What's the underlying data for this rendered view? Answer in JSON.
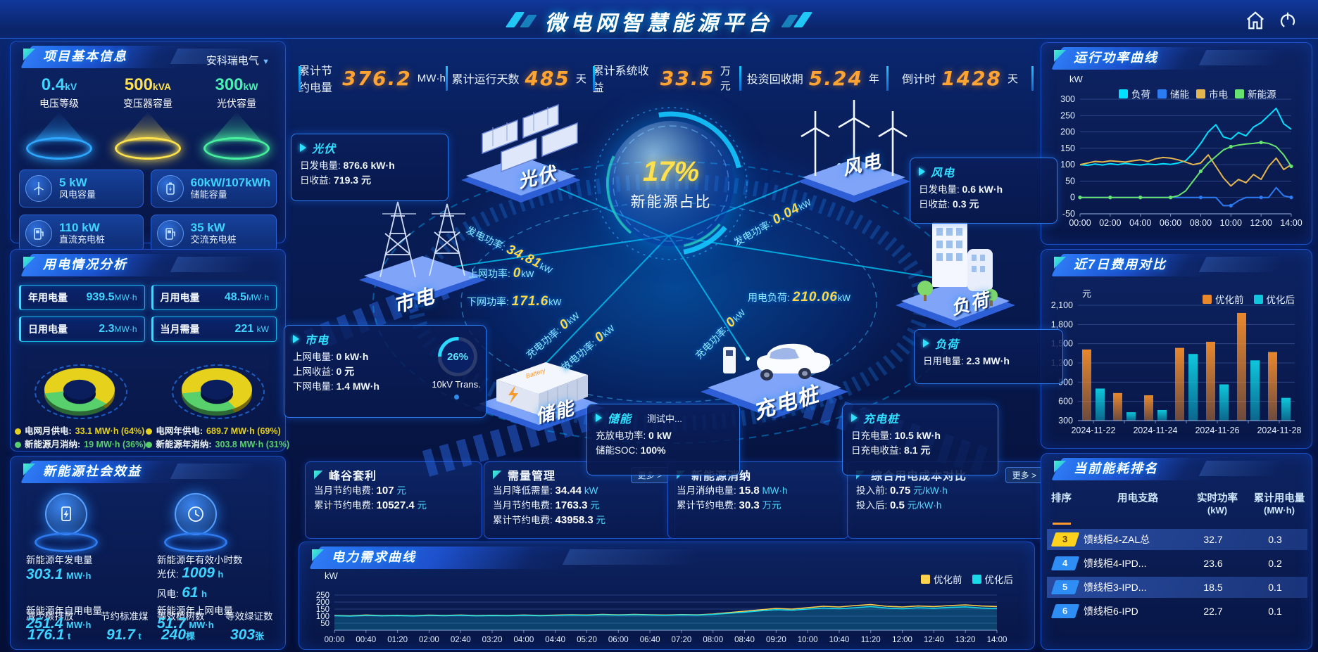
{
  "colors": {
    "accent": "#00d8ff",
    "number_orange": "#ffa332",
    "value_cyan": "#3fd4ff",
    "yellow": "#e6d11d",
    "green": "#58d06c",
    "bar_before": "#e8872c",
    "bar_after": "#0fc6dc"
  },
  "header": {
    "title": "微电网智慧能源平台"
  },
  "top_stats": [
    {
      "label": "累计节约电量",
      "value": "376.2",
      "unit": "MW·h"
    },
    {
      "label": "累计运行天数",
      "value": "485",
      "unit": "天"
    },
    {
      "label": "累计系统收益",
      "value": "33.5",
      "unit": "万元"
    },
    {
      "label": "投资回收期",
      "value": "5.24",
      "unit": "年"
    },
    {
      "label": "倒计时",
      "value": "1428",
      "unit": "天"
    }
  ],
  "project_info": {
    "title": "项目基本信息",
    "company": "安科瑞电气",
    "caret": "▼",
    "cones": [
      {
        "value": "0.4",
        "unit": "kV",
        "label": "电压等级"
      },
      {
        "value": "500",
        "unit": "kVA",
        "label": "变压器容量"
      },
      {
        "value": "300",
        "unit": "kW",
        "label": "光伏容量"
      }
    ],
    "cards": [
      {
        "value": "5 kW",
        "label": "风电容量",
        "icon": "wind-turbine-icon"
      },
      {
        "value": "60kW/107kWh",
        "label": "储能容量",
        "icon": "battery-icon"
      },
      {
        "value": "110 kW",
        "label": "直流充电桩",
        "icon": "dc-charger-icon"
      },
      {
        "value": "35 kW",
        "label": "交流充电桩",
        "icon": "ac-charger-icon"
      }
    ]
  },
  "power_analysis": {
    "title": "用电情况分析",
    "stats": [
      {
        "label": "年用电量",
        "value": "939.5",
        "unit": "MW·h"
      },
      {
        "label": "月用电量",
        "value": "48.5",
        "unit": "MW·h"
      },
      {
        "label": "日用电量",
        "value": "2.3",
        "unit": "MW·h"
      },
      {
        "label": "当月需量",
        "value": "221",
        "unit": "kW"
      }
    ]
  },
  "social_benefit": {
    "title": "新能源社会效益",
    "gen_label": "新能源年发电量",
    "gen_value": "303.1",
    "gen_unit": "MW·h",
    "hours_label": "新能源年有效小时数",
    "pv_label": "光伏:",
    "pv_value": "1009",
    "pv_unit": "h",
    "wind_label": "风电:",
    "wind_value": "61",
    "wind_unit": "h",
    "self_label": "新能源年自用电量",
    "self_value": "251.4",
    "self_unit": "MW·h",
    "co2_label": "减少碳排放",
    "co2_value": "176.1",
    "co2_unit": "t",
    "coal_label": "节约标准煤",
    "coal_value": "91.7",
    "coal_unit": "t",
    "ongrid_label": "新能源年上网电量",
    "ongrid_value": "51.7",
    "ongrid_unit": "MW·h",
    "trees_label": "等效植树数",
    "trees_value": "240",
    "trees_unit": "棵",
    "cert_label": "等效绿证数",
    "cert_value": "303",
    "cert_unit": "张"
  },
  "center": {
    "hub": {
      "percent": "17%",
      "label": "新能源占比"
    },
    "nodes": {
      "pv": "光伏",
      "wind": "风电",
      "grid": "市电",
      "storage": "储能",
      "charger": "充电桩",
      "load": "负荷"
    },
    "flows": {
      "pv_gen": {
        "label": "发电功率:",
        "value": "34.81",
        "unit": "kW"
      },
      "wind_gen": {
        "label": "发电功率:",
        "value": "0.04",
        "unit": "kW"
      },
      "to_grid": {
        "label": "上网功率:",
        "value": "0",
        "unit": "kW"
      },
      "from_grid": {
        "label": "下网功率:",
        "value": "171.6",
        "unit": "kW"
      },
      "storage_charge": {
        "label": "充电功率:",
        "value": "0",
        "unit": "kW"
      },
      "storage_discharge": {
        "label": "放电功率:",
        "value": "0",
        "unit": "kW"
      },
      "load_power": {
        "label": "用电负荷:",
        "value": "210.06",
        "unit": "kW"
      },
      "charger_power": {
        "label": "充电功率:",
        "value": "0",
        "unit": "kW"
      }
    },
    "pv_card": {
      "title": "光伏",
      "rows": [
        {
          "label": "日发电量:",
          "value": "876.6 kW·h"
        },
        {
          "label": "日收益:",
          "value": "719.3 元"
        }
      ]
    },
    "wind_card": {
      "title": "风电",
      "rows": [
        {
          "label": "日发电量:",
          "value": "0.6 kW·h"
        },
        {
          "label": "日收益:",
          "value": "0.3 元"
        }
      ]
    },
    "grid_card": {
      "title": "市电",
      "rows": [
        {
          "label": "上网电量:",
          "value": "0 kW·h"
        },
        {
          "label": "上网收益:",
          "value": "0 元"
        },
        {
          "label": "下网电量:",
          "value": "1.4 MW·h"
        }
      ],
      "gauge_percent": "26%",
      "gauge_label": "10kV Trans."
    },
    "storage_card": {
      "title": "储能",
      "status": "测试中...",
      "rows": [
        {
          "label": "充放电功率:",
          "value": "0 kW"
        },
        {
          "label": "储能SOC:",
          "value": "100%"
        }
      ]
    },
    "charger_card": {
      "title": "充电桩",
      "rows": [
        {
          "label": "日充电量:",
          "value": "10.5 kW·h"
        },
        {
          "label": "日充电收益:",
          "value": "8.1 元"
        }
      ]
    },
    "load_card": {
      "title": "负荷",
      "rows": [
        {
          "label": "日用电量:",
          "value": "2.3 MW·h"
        }
      ]
    }
  },
  "bottom_cards": [
    {
      "title": "峰谷套利",
      "more": "",
      "rows": [
        {
          "label": "当月节约电费:",
          "value": "107",
          "unit": "元"
        },
        {
          "label": "累计节约电费:",
          "value": "10527.4",
          "unit": "元"
        }
      ]
    },
    {
      "title": "需量管理",
      "more": "更多 >",
      "rows": [
        {
          "label": "当月降低需量:",
          "value": "34.44",
          "unit": "kW"
        },
        {
          "label": "当月节约电费:",
          "value": "1763.3",
          "unit": "元"
        },
        {
          "label": "累计节约电费:",
          "value": "43958.3",
          "unit": "元"
        }
      ]
    },
    {
      "title": "新能源消纳",
      "more": "",
      "rows": [
        {
          "label": "当月消纳电量:",
          "value": "15.8",
          "unit": "MW·h"
        },
        {
          "label": "累计节约电费:",
          "value": "30.3",
          "unit": "万元"
        }
      ]
    },
    {
      "title": "综合用电成本对比",
      "more": "更多 >",
      "rows": [
        {
          "label": "投入前:",
          "value": "0.75",
          "unit": "元/kW·h"
        },
        {
          "label": "投入后:",
          "value": "0.5",
          "unit": "元/kW·h"
        }
      ]
    }
  ],
  "demand_panel": {
    "title": "电力需求曲线",
    "ylabel": "kW"
  },
  "right": {
    "power_curve_title": "运行功率曲线",
    "power_curve_ylabel": "kW",
    "cost_title": "近7日费用对比",
    "cost_ylabel": "元",
    "ranking": {
      "title": "当前能耗排名",
      "columns": [
        {
          "t": "排序",
          "s": ""
        },
        {
          "t": "用电支路",
          "s": ""
        },
        {
          "t": "实时功率",
          "s": "(kW)"
        },
        {
          "t": "累计用电量",
          "s": "(MW·h)"
        }
      ],
      "rows": [
        {
          "rank": "3",
          "badge": "yellow",
          "branch": "馈线柜4-ZAL总",
          "power": "32.7",
          "energy": "0.3"
        },
        {
          "rank": "4",
          "badge": "blue",
          "branch": "馈线柜4-IPD...",
          "power": "23.6",
          "energy": "0.2"
        },
        {
          "rank": "5",
          "badge": "blue",
          "branch": "馈线柜3-IPD...",
          "power": "18.5",
          "energy": "0.1"
        },
        {
          "rank": "6",
          "badge": "blue",
          "branch": "馈线柜6-IPD",
          "power": "22.7",
          "energy": "0.1"
        }
      ]
    }
  },
  "chart_data": [
    {
      "id": "power-curve",
      "type": "line",
      "title": "运行功率曲线",
      "ylabel": "kW",
      "ylim": [
        -50,
        300
      ],
      "yticks": [
        -50,
        0,
        50,
        100,
        150,
        200,
        250,
        300
      ],
      "x_labels": [
        "00:00",
        "02:00",
        "04:00",
        "06:00",
        "08:00",
        "10:00",
        "12:00",
        "14:00"
      ],
      "legend_position": "top",
      "grid": true,
      "series": [
        {
          "name": "负荷",
          "color": "#00e0ff",
          "values": [
            100,
            98,
            102,
            99,
            103,
            100,
            104,
            101,
            99,
            102,
            100,
            103,
            101,
            105,
            112,
            135,
            165,
            200,
            222,
            185,
            178,
            198,
            188,
            215,
            228,
            250,
            272,
            225,
            208
          ]
        },
        {
          "name": "储能",
          "color": "#2b7bf3",
          "values": [
            0,
            0,
            0,
            0,
            0,
            0,
            0,
            0,
            0,
            0,
            0,
            0,
            0,
            0,
            0,
            0,
            0,
            0,
            0,
            -25,
            -25,
            -10,
            0,
            0,
            0,
            0,
            30,
            5,
            0
          ]
        },
        {
          "name": "市电",
          "color": "#e3b64e",
          "values": [
            100,
            105,
            110,
            108,
            112,
            110,
            108,
            112,
            115,
            110,
            118,
            122,
            120,
            115,
            108,
            100,
            105,
            130,
            95,
            60,
            35,
            55,
            45,
            70,
            55,
            95,
            120,
            85,
            100
          ]
        },
        {
          "name": "新能源",
          "color": "#67e46f",
          "values": [
            0,
            0,
            0,
            0,
            0,
            0,
            0,
            0,
            0,
            0,
            0,
            0,
            0,
            5,
            20,
            50,
            80,
            105,
            125,
            145,
            155,
            160,
            163,
            165,
            168,
            165,
            155,
            130,
            95
          ]
        }
      ]
    },
    {
      "id": "cost-compare",
      "type": "bar",
      "title": "近7日费用对比",
      "ylabel": "元",
      "ylim": [
        300,
        2100
      ],
      "yticks": [
        300,
        600,
        900,
        1200,
        1500,
        1800,
        2100
      ],
      "categories": [
        "2024-11-22",
        "2024-11-23",
        "2024-11-24",
        "2024-11-25",
        "2024-11-26",
        "2024-11-27",
        "2024-11-28"
      ],
      "x_labels_shown": [
        "2024-11-22",
        "2024-11-24",
        "2024-11-26",
        "2024-11-28"
      ],
      "legend_position": "top-right",
      "grid": true,
      "series": [
        {
          "name": "优化前",
          "color": "#e8872c",
          "values": [
            1410,
            730,
            695,
            1435,
            1530,
            1980,
            1370
          ]
        },
        {
          "name": "优化后",
          "color": "#0fc6dc",
          "values": [
            800,
            430,
            465,
            1340,
            865,
            1240,
            655
          ]
        }
      ]
    },
    {
      "id": "demand-curve",
      "type": "line",
      "title": "电力需求曲线",
      "ylabel": "kW",
      "ylim": [
        0,
        280
      ],
      "yticks": [
        50,
        100,
        150,
        200,
        250
      ],
      "x_labels": [
        "00:00",
        "00:40",
        "01:20",
        "02:00",
        "02:40",
        "03:20",
        "04:00",
        "04:40",
        "05:20",
        "06:00",
        "06:40",
        "07:20",
        "08:00",
        "08:40",
        "09:20",
        "10:00",
        "10:40",
        "11:20",
        "12:00",
        "12:40",
        "13:20",
        "14:00"
      ],
      "legend_position": "top-right",
      "grid": true,
      "series": [
        {
          "name": "优化前",
          "color": "#ffd34e",
          "values": [
            105,
            102,
            108,
            104,
            106,
            103,
            107,
            105,
            108,
            104,
            106,
            105,
            108,
            105,
            107,
            110,
            108,
            112,
            109,
            112,
            110,
            108,
            111,
            109,
            115,
            125,
            135,
            145,
            155,
            150,
            160,
            170,
            165,
            175,
            182,
            170,
            165,
            172,
            168,
            175,
            180,
            172,
            168
          ]
        },
        {
          "name": "优化后",
          "color": "#19d8e8",
          "area": true,
          "values": [
            103,
            100,
            105,
            102,
            104,
            101,
            105,
            103,
            106,
            102,
            104,
            103,
            106,
            103,
            105,
            108,
            106,
            110,
            107,
            110,
            108,
            106,
            109,
            107,
            112,
            120,
            128,
            138,
            146,
            142,
            150,
            158,
            153,
            160,
            168,
            158,
            152,
            160,
            156,
            162,
            166,
            158,
            154
          ]
        }
      ]
    },
    {
      "id": "supply-donut-month",
      "type": "pie",
      "slices": [
        {
          "label": "电网月供电:",
          "display": "33.1 MW·h (64%)",
          "value": 33.1,
          "percent": 64,
          "color": "#e6d11d"
        },
        {
          "label": "新能源月消纳:",
          "display": "19 MW·h (36%)",
          "value": 19,
          "percent": 36,
          "color": "#58d06c"
        }
      ]
    },
    {
      "id": "supply-donut-year",
      "type": "pie",
      "slices": [
        {
          "label": "电网年供电:",
          "display": "689.7 MW·h (69%)",
          "value": 689.7,
          "percent": 69,
          "color": "#e6d11d"
        },
        {
          "label": "新能源年消纳:",
          "display": "303.8 MW·h (31%)",
          "value": 303.8,
          "percent": 31,
          "color": "#58d06c"
        }
      ]
    },
    {
      "id": "transformer-gauge",
      "type": "pie",
      "percent": 26,
      "label": "10kV Trans.",
      "color": "#2bd9ff"
    },
    {
      "id": "new-energy-share",
      "type": "pie",
      "percent": 17,
      "label": "新能源占比"
    }
  ]
}
